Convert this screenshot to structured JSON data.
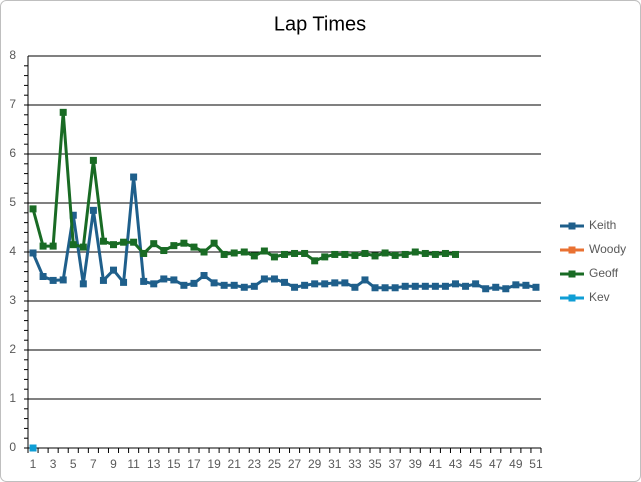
{
  "chart_data": {
    "type": "line",
    "title": "Lap Times",
    "categories": [
      1,
      null,
      3,
      null,
      5,
      null,
      7,
      null,
      9,
      null,
      11,
      null,
      13,
      null,
      15,
      null,
      17,
      null,
      19,
      null,
      21,
      null,
      23,
      null,
      25,
      null,
      27,
      null,
      29,
      null,
      31,
      null,
      33,
      null,
      35,
      null,
      37,
      null,
      39,
      null,
      41,
      null,
      43,
      null,
      45,
      null,
      47,
      null,
      49,
      null,
      51
    ],
    "series": [
      {
        "name": "Keith",
        "color": "#1f5f8b",
        "values": [
          3.98,
          3.5,
          3.42,
          3.43,
          4.75,
          3.35,
          4.85,
          3.42,
          3.63,
          3.38,
          5.53,
          3.4,
          3.35,
          3.45,
          3.43,
          3.32,
          3.36,
          3.52,
          3.37,
          3.32,
          3.32,
          3.28,
          3.3,
          3.45,
          3.45,
          3.38,
          3.28,
          3.32,
          3.35,
          3.35,
          3.37,
          3.37,
          3.28,
          3.43,
          3.27,
          3.27,
          3.27,
          3.3,
          3.3,
          3.3,
          3.3,
          3.3,
          3.35,
          3.3,
          3.35,
          3.25,
          3.28,
          3.25,
          3.33,
          3.32,
          3.28
        ]
      },
      {
        "name": "Woody",
        "color": "#e97132",
        "values": [
          null,
          null,
          null,
          null,
          null,
          null,
          null,
          null,
          null,
          null,
          null,
          null,
          null,
          null,
          null,
          null,
          null,
          null,
          null,
          null,
          null,
          null,
          null,
          null,
          null,
          null,
          null,
          null,
          null,
          null,
          null,
          null,
          null,
          null,
          null,
          null,
          null,
          null,
          null,
          null,
          null,
          null,
          null,
          null,
          null,
          null,
          null,
          null,
          null,
          null,
          null
        ]
      },
      {
        "name": "Geoff",
        "color": "#196b24",
        "values": [
          4.88,
          4.12,
          4.12,
          6.85,
          4.15,
          4.1,
          5.87,
          4.22,
          4.15,
          4.2,
          4.2,
          3.97,
          4.17,
          4.03,
          4.13,
          4.18,
          4.1,
          4.0,
          4.18,
          3.95,
          3.98,
          4.0,
          3.92,
          4.02,
          3.9,
          3.95,
          3.97,
          3.97,
          3.82,
          3.9,
          3.95,
          3.95,
          3.93,
          3.97,
          3.92,
          3.98,
          3.93,
          3.95,
          4.0,
          3.97,
          3.95,
          3.97,
          3.95,
          null,
          null,
          null,
          null,
          null,
          null,
          null,
          null
        ]
      },
      {
        "name": "Kev",
        "color": "#0f9ed5",
        "values": [
          0,
          null,
          null,
          null,
          null,
          null,
          null,
          null,
          null,
          null,
          null,
          null,
          null,
          null,
          null,
          null,
          null,
          null,
          null,
          null,
          null,
          null,
          null,
          null,
          null,
          null,
          null,
          null,
          null,
          null,
          null,
          null,
          null,
          null,
          null,
          null,
          null,
          null,
          null,
          null,
          null,
          null,
          null,
          null,
          null,
          null,
          null,
          null,
          null,
          null,
          null
        ]
      }
    ],
    "ylim": [
      0,
      8
    ],
    "yticks": [
      0,
      1,
      2,
      3,
      4,
      5,
      6,
      7,
      8
    ],
    "grid": true,
    "legend": "right"
  }
}
